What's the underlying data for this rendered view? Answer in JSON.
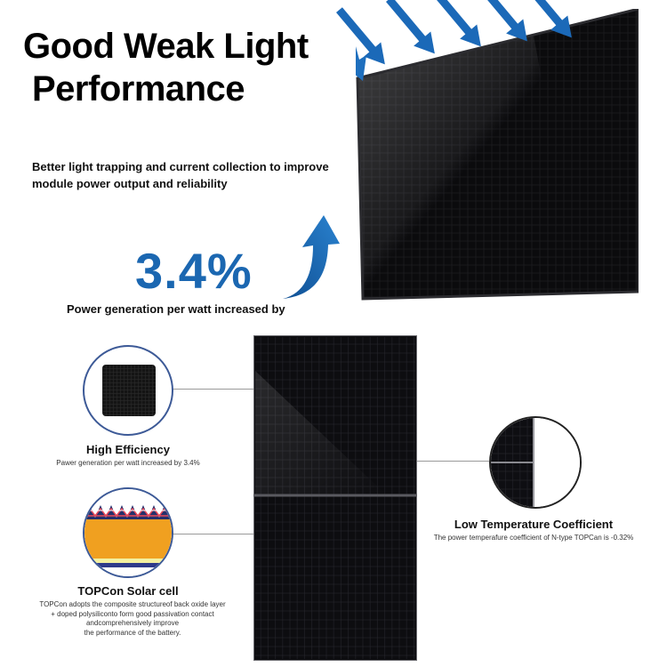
{
  "title": {
    "line1": "Good Weak Light",
    "line2": "Performance"
  },
  "description": "Better light trapping and current collection to improve module power output and reliability",
  "highlight": {
    "value": "3.4%",
    "caption": "Power generation per watt increased by"
  },
  "features": {
    "high_efficiency": {
      "title": "High Efficiency",
      "text": "Pawer generation per watt increased by 3.4%"
    },
    "topcon_cell": {
      "title": "TOPCon Solar cell",
      "lines": [
        "TOPCon adopts the composite structureof back oxide layer",
        "+ doped polysiliconto form good passivation contact",
        "andcomprehensively improve",
        "the performance of the battery."
      ]
    },
    "low_temp": {
      "title": "Low Temperature Coefficient",
      "text": "The power temperafure coefficient of N-type TOPCan is -0.32%"
    }
  },
  "colors": {
    "accent_blue": "#1b67b1",
    "circle_border": "#3d5a97",
    "panel": "#0c0c0e"
  },
  "icons": [
    "sunlight-arrow-icon",
    "upward-curved-arrow-icon"
  ]
}
